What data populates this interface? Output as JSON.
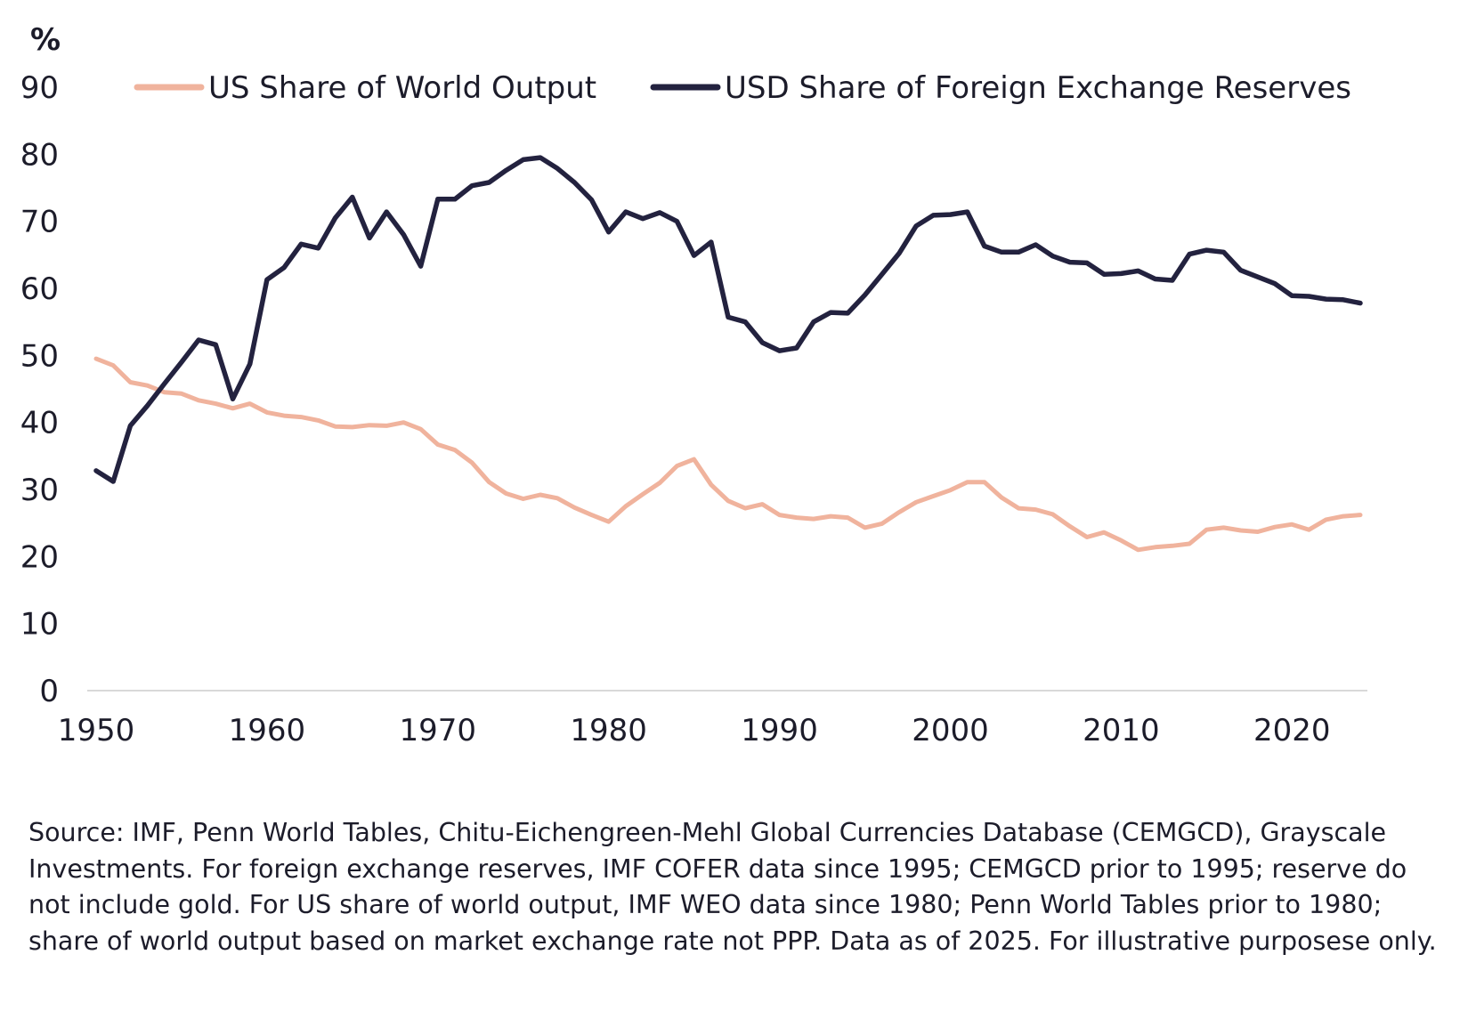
{
  "chart_data": {
    "type": "line",
    "title": "",
    "ylabel": "%",
    "xlabel": "",
    "ylim": [
      0,
      90
    ],
    "xlim": [
      1950,
      2024
    ],
    "yticks": [
      "0",
      "10",
      "20",
      "30",
      "40",
      "50",
      "60",
      "70",
      "80",
      "90"
    ],
    "xticks": [
      "1950",
      "1960",
      "1970",
      "1980",
      "1990",
      "2000",
      "2010",
      "2020"
    ],
    "grid": false,
    "legend_position": "top",
    "series": [
      {
        "name": "US Share of World Output",
        "color": "#f0b39d",
        "x": [
          1950,
          1951,
          1952,
          1953,
          1954,
          1955,
          1956,
          1957,
          1958,
          1959,
          1960,
          1961,
          1962,
          1963,
          1964,
          1965,
          1966,
          1967,
          1968,
          1969,
          1970,
          1971,
          1972,
          1973,
          1974,
          1975,
          1976,
          1977,
          1978,
          1979,
          1980,
          1981,
          1982,
          1983,
          1984,
          1985,
          1986,
          1987,
          1988,
          1989,
          1990,
          1991,
          1992,
          1993,
          1994,
          1995,
          1996,
          1997,
          1998,
          1999,
          2000,
          2001,
          2002,
          2003,
          2004,
          2005,
          2006,
          2007,
          2008,
          2009,
          2010,
          2011,
          2012,
          2013,
          2014,
          2015,
          2016,
          2017,
          2018,
          2019,
          2020,
          2021,
          2022,
          2023,
          2024
        ],
        "values": [
          49.5,
          48.5,
          46,
          45.5,
          44.5,
          44.3,
          43.3,
          42.8,
          42.1,
          42.8,
          41.5,
          41,
          40.8,
          40.3,
          39.4,
          39.3,
          39.6,
          39.5,
          40,
          39,
          36.7,
          35.9,
          34,
          31.1,
          29.4,
          28.6,
          29.2,
          28.7,
          27.3,
          26.2,
          25.2,
          27.5,
          29.3,
          31,
          33.5,
          34.5,
          30.7,
          28.3,
          27.2,
          27.8,
          26.2,
          25.8,
          25.6,
          26,
          25.8,
          24.3,
          24.9,
          26.6,
          28.1,
          29,
          29.9,
          31.1,
          31.1,
          28.8,
          27.2,
          27,
          26.3,
          24.5,
          22.9,
          23.6,
          22.4,
          21,
          21.4,
          21.6,
          21.9,
          24,
          24.3,
          23.9,
          23.7,
          24.4,
          24.8,
          24,
          25.5,
          26,
          26.2
        ]
      },
      {
        "name": "USD Share of Foreign Exchange Reserves",
        "color": "#23223f",
        "x": [
          1950,
          1951,
          1952,
          1953,
          1954,
          1955,
          1956,
          1957,
          1958,
          1959,
          1960,
          1961,
          1962,
          1963,
          1964,
          1965,
          1966,
          1967,
          1968,
          1969,
          1970,
          1971,
          1972,
          1973,
          1974,
          1975,
          1976,
          1977,
          1978,
          1979,
          1980,
          1981,
          1982,
          1983,
          1984,
          1985,
          1986,
          1987,
          1988,
          1989,
          1990,
          1991,
          1992,
          1993,
          1994,
          1995,
          1996,
          1997,
          1998,
          1999,
          2000,
          2001,
          2002,
          2003,
          2004,
          2005,
          2006,
          2007,
          2008,
          2009,
          2010,
          2011,
          2012,
          2013,
          2014,
          2015,
          2016,
          2017,
          2018,
          2019,
          2020,
          2021,
          2022,
          2023,
          2024
        ],
        "values": [
          32.8,
          31.2,
          39.5,
          42.5,
          45.8,
          49,
          52.3,
          51.6,
          43.5,
          48.7,
          61.3,
          63.1,
          66.6,
          66,
          70.5,
          73.6,
          67.5,
          71.4,
          68,
          63.3,
          73.3,
          73.3,
          75.3,
          75.8,
          77.6,
          79.2,
          79.5,
          77.9,
          75.8,
          73.2,
          68.4,
          71.4,
          70.4,
          71.3,
          70,
          64.9,
          66.9,
          55.7,
          55,
          51.9,
          50.7,
          51.1,
          55,
          56.4,
          56.3,
          59,
          62.1,
          65.2,
          69.3,
          70.9,
          71,
          71.4,
          66.3,
          65.4,
          65.4,
          66.5,
          64.8,
          63.9,
          63.8,
          62.1,
          62.2,
          62.6,
          61.4,
          61.2,
          65.1,
          65.7,
          65.4,
          62.7,
          61.7,
          60.7,
          58.9,
          58.8,
          58.4,
          58.3,
          57.8
        ]
      }
    ]
  },
  "footnote": "Source: IMF, Penn World Tables, Chitu-Eichengreen-Mehl Global Currencies Database (CEMGCD), Grayscale Investments. For foreign exchange reserves, IMF COFER data since 1995; CEMGCD prior to 1995; reserve do not include gold. For US share of world output, IMF WEO data since 1980; Penn World Tables prior to 1980; share of world output based on market exchange rate not PPP. Data as of 2025. For illustrative purposese only."
}
